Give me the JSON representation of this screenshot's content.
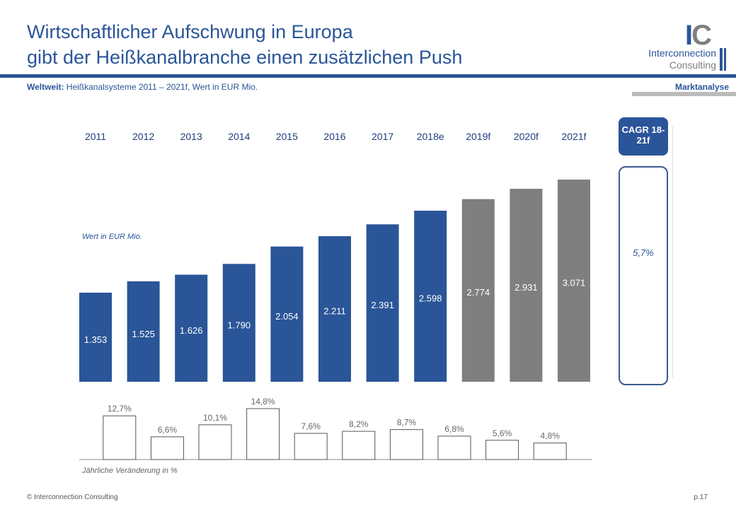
{
  "header": {
    "title_line1": "Wirtschaftlicher Aufschwung in Europa",
    "title_line2": "gibt der Heißkanalbranche einen zusätzlichen Push",
    "subtitle_bold": "Weltweit:",
    "subtitle": " Heißkanalsysteme 2011 – 2021f, Wert in EUR Mio.",
    "section": "Marktanalyse"
  },
  "logo": {
    "mark": "IC",
    "line1": "Interconnection",
    "line2": "Consulting"
  },
  "footer": {
    "copyright": "© Interconnection Consulting",
    "page": "p.17"
  },
  "cagr": {
    "label": "CAGR 18-21f",
    "value": "5,7%"
  },
  "colors": {
    "actual": "#2a5598",
    "forecast": "#7f7f7f"
  },
  "chart_data": [
    {
      "type": "bar",
      "ylabel": "Wert in EUR Mio.",
      "categories": [
        "2011",
        "2012",
        "2013",
        "2014",
        "2015",
        "2016",
        "2017",
        "2018e",
        "2019f",
        "2020f",
        "2021f"
      ],
      "values": [
        1353,
        1525,
        1626,
        1790,
        2054,
        2211,
        2391,
        2598,
        2774,
        2931,
        3071
      ],
      "labels": [
        "1.353",
        "1.525",
        "1.626",
        "1.790",
        "2.054",
        "2.211",
        "2.391",
        "2.598",
        "2.774",
        "2.931",
        "3.071"
      ],
      "forecast": [
        false,
        false,
        false,
        false,
        false,
        false,
        false,
        false,
        true,
        true,
        true
      ]
    },
    {
      "type": "bar",
      "xlabel": "Jährliche Veränderung in %",
      "values": [
        12.7,
        6.6,
        10.1,
        14.8,
        7.6,
        8.2,
        8.7,
        6.8,
        5.6,
        4.8
      ],
      "labels": [
        "12,7%",
        "6,6%",
        "10,1%",
        "14,8%",
        "7,6%",
        "8,2%",
        "8,7%",
        "6,8%",
        "5,6%",
        "4,8%"
      ]
    }
  ]
}
